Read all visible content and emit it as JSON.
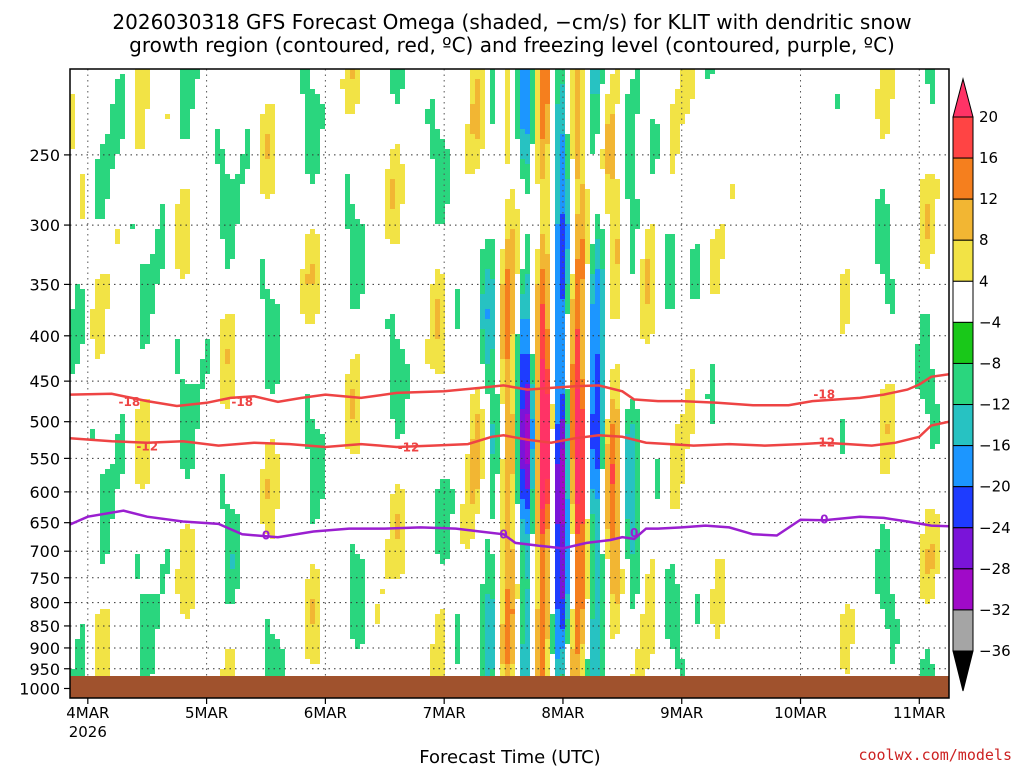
{
  "chart_data": {
    "type": "heatmap",
    "title_line1": "2026030318 GFS Forecast Omega (shaded, −cm/s) for KLIT with dendritic snow",
    "title_line2": "growth region (contoured, red, ºC) and freezing level (contoured, purple, ºC)",
    "xlabel": "Forecast Time (UTC)",
    "credit": "coolwx.com/models",
    "x_ticks": [
      {
        "day": 4,
        "label": "4MAR",
        "sublabel": "2026"
      },
      {
        "day": 5,
        "label": "5MAR"
      },
      {
        "day": 6,
        "label": "6MAR"
      },
      {
        "day": 7,
        "label": "7MAR"
      },
      {
        "day": 8,
        "label": "8MAR"
      },
      {
        "day": 9,
        "label": "9MAR"
      },
      {
        "day": 10,
        "label": "10MAR"
      },
      {
        "day": 11,
        "label": "11MAR"
      }
    ],
    "xlim_days": [
      3.85,
      11.25
    ],
    "y_axis": {
      "ticks": [
        250,
        300,
        350,
        400,
        450,
        500,
        550,
        600,
        650,
        700,
        750,
        800,
        850,
        900,
        950,
        1000
      ],
      "labels": [
        "250",
        "300",
        "350",
        "400",
        "450",
        "500",
        "550",
        "600",
        "650",
        "700",
        "750",
        "800",
        "850",
        "900",
        "950",
        "1000"
      ],
      "ylim_hpa": [
        200,
        1025
      ],
      "scale": "log-pressure"
    },
    "colorbar": {
      "labels": [
        "20",
        "16",
        "12",
        "8",
        "4",
        "−4",
        "−8",
        "−12",
        "−16",
        "−20",
        "−24",
        "−28",
        "−32",
        "−36"
      ],
      "colors": [
        "#ff3366",
        "#ff4444",
        "#f57f1e",
        "#f2b633",
        "#f2e345",
        "#ffffff",
        "#19c819",
        "#2ad67e",
        "#27c2c2",
        "#1c96ff",
        "#1e3cff",
        "#7a14d9",
        "#a00ac8",
        "#a5a5a5",
        "#000000",
        "#000000"
      ]
    },
    "contours": [
      {
        "name": "dgz_-18",
        "label": "-18",
        "color": "#ee4444",
        "x": [
          3.85,
          4.2,
          4.5,
          4.75,
          5.0,
          5.2,
          5.4,
          5.6,
          5.8,
          6.0,
          6.3,
          6.6,
          7.0,
          7.3,
          7.5,
          7.7,
          7.9,
          8.1,
          8.3,
          8.5,
          8.6,
          8.8,
          9.0,
          9.3,
          9.6,
          9.9,
          10.1,
          10.3,
          10.5,
          10.7,
          10.9,
          11.0,
          11.1,
          11.25
        ],
        "y": [
          466,
          465,
          474,
          480,
          476,
          470,
          468,
          475,
          470,
          466,
          470,
          464,
          462,
          458,
          455,
          460,
          458,
          456,
          455,
          462,
          472,
          474,
          474,
          476,
          479,
          479,
          474,
          472,
          470,
          466,
          460,
          454,
          445,
          442
        ],
        "label_points": [
          [
            4.35,
            475
          ],
          [
            5.3,
            475
          ],
          [
            10.2,
            466
          ]
        ]
      },
      {
        "name": "dgz_-12",
        "label": "-12",
        "color": "#ee4444",
        "x": [
          3.85,
          4.2,
          4.5,
          4.8,
          5.1,
          5.4,
          5.7,
          6.0,
          6.3,
          6.6,
          6.9,
          7.2,
          7.4,
          7.5,
          7.7,
          7.9,
          8.1,
          8.3,
          8.5,
          8.7,
          8.9,
          9.1,
          9.4,
          9.7,
          10.0,
          10.2,
          10.4,
          10.6,
          10.8,
          11.0,
          11.1,
          11.25
        ],
        "y": [
          522,
          526,
          528,
          526,
          532,
          528,
          530,
          534,
          530,
          534,
          532,
          530,
          520,
          518,
          524,
          528,
          522,
          518,
          520,
          528,
          530,
          532,
          530,
          532,
          530,
          528,
          530,
          532,
          528,
          520,
          505,
          500
        ],
        "label_points": [
          [
            4.5,
            533
          ],
          [
            6.7,
            535
          ],
          [
            10.2,
            528
          ]
        ]
      },
      {
        "name": "freezing_0",
        "label": "0",
        "color": "#9a1fd0",
        "x": [
          3.85,
          4.0,
          4.3,
          4.5,
          4.8,
          5.1,
          5.3,
          5.6,
          5.9,
          6.2,
          6.5,
          6.8,
          7.1,
          7.3,
          7.5,
          7.6,
          7.8,
          8.0,
          8.2,
          8.4,
          8.5,
          8.6,
          8.7,
          8.8,
          9.0,
          9.2,
          9.4,
          9.6,
          9.8,
          10.0,
          10.2,
          10.5,
          10.7,
          10.9,
          11.1,
          11.25
        ],
        "y": [
          653,
          640,
          630,
          640,
          648,
          652,
          670,
          675,
          665,
          660,
          660,
          658,
          660,
          665,
          670,
          685,
          690,
          695,
          685,
          680,
          675,
          678,
          660,
          660,
          658,
          655,
          658,
          670,
          672,
          645,
          646,
          640,
          642,
          648,
          655,
          656
        ],
        "label_points": [
          [
            5.5,
            672
          ],
          [
            7.5,
            670
          ],
          [
            8.6,
            668
          ],
          [
            10.2,
            645
          ]
        ]
      }
    ],
    "legend_placement": "right colorbar"
  }
}
